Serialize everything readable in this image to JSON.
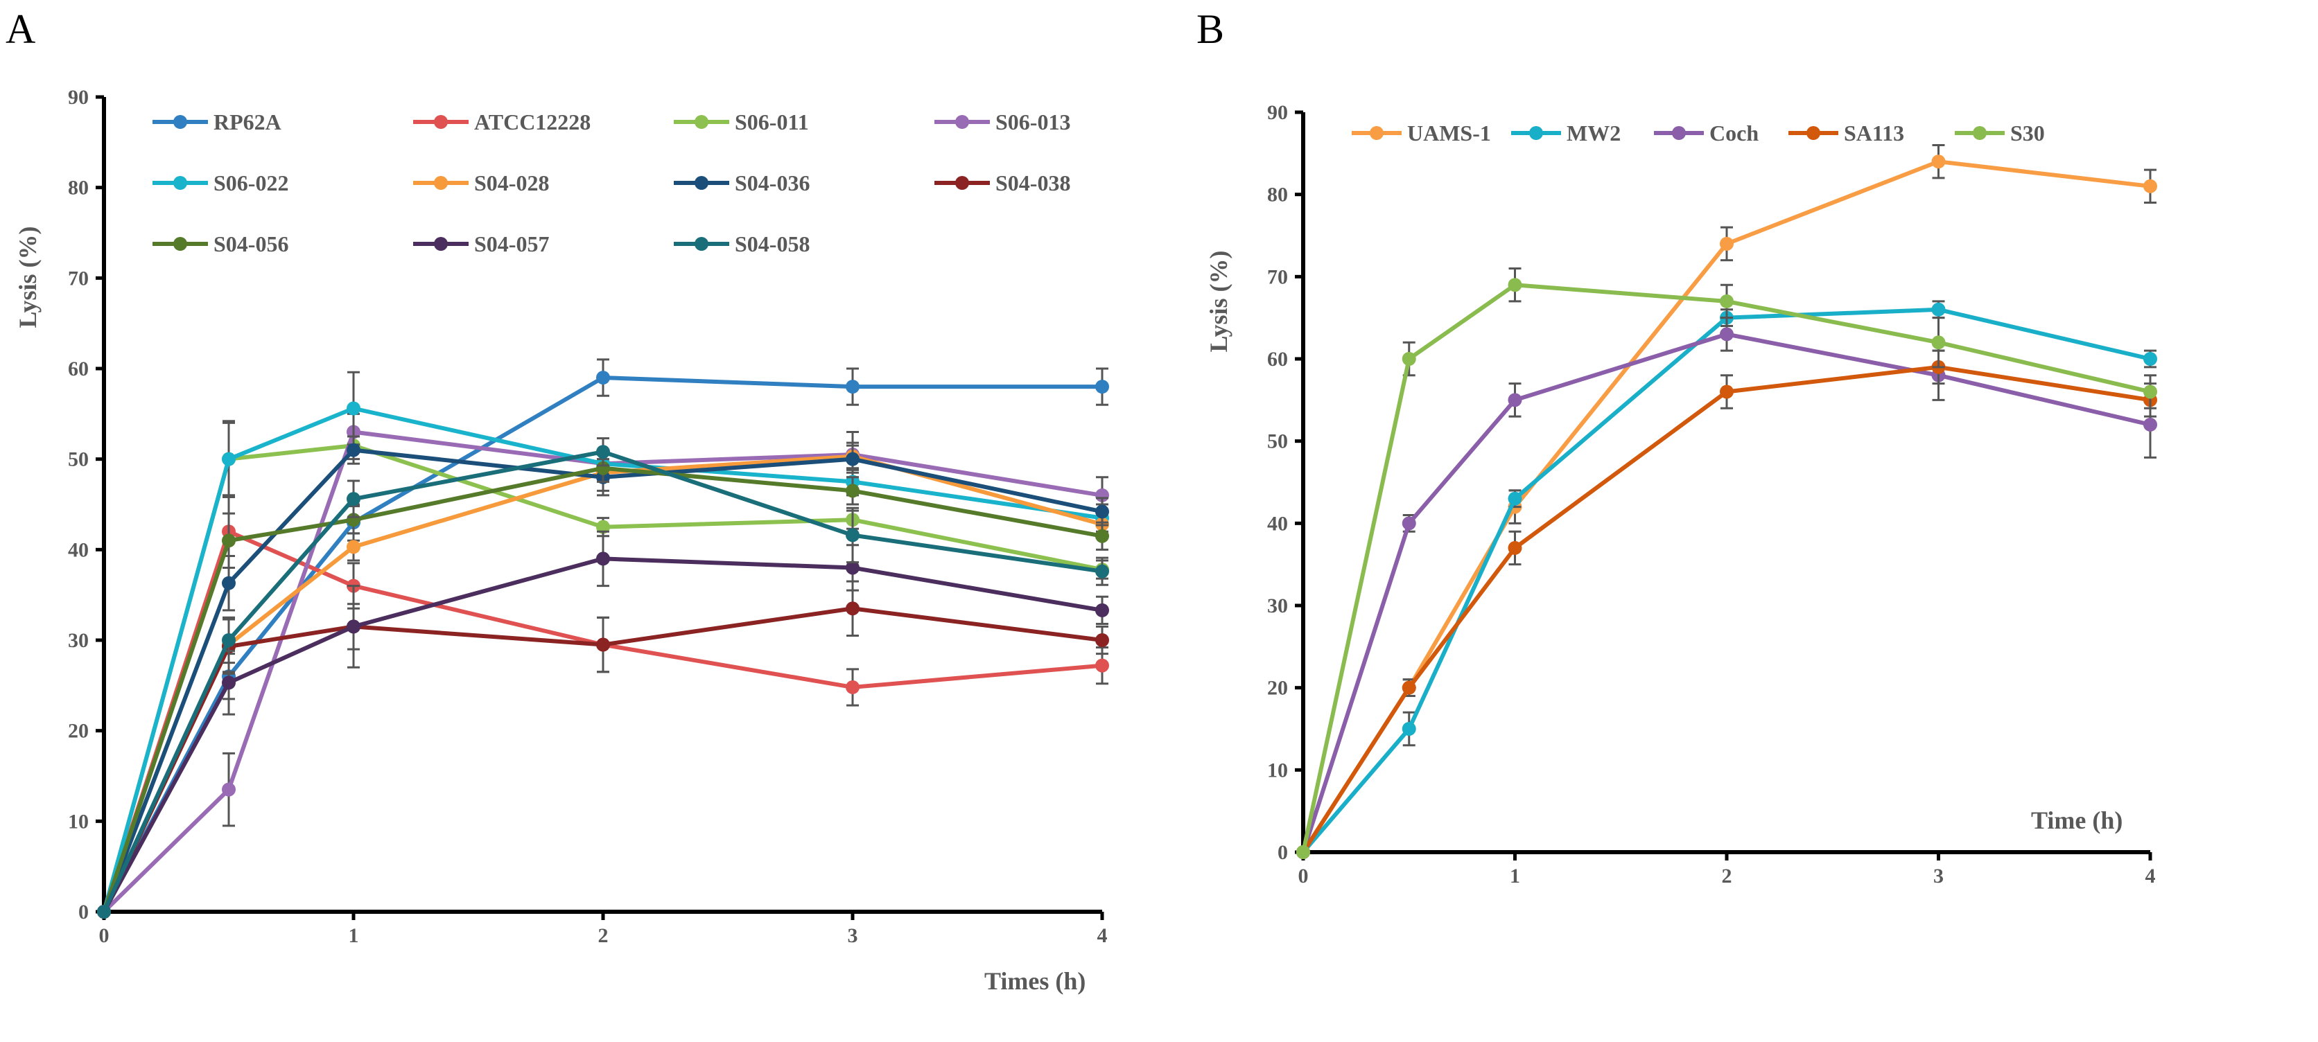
{
  "chart_data": [
    {
      "panel_label": "A",
      "type": "line",
      "xlabel": "Times (h)",
      "ylabel": "Lysis (%)",
      "x": [
        0,
        0.5,
        1,
        2,
        3,
        4
      ],
      "xticks": [
        "0",
        "1",
        "2",
        "3",
        "4"
      ],
      "xtick_values": [
        0,
        1,
        2,
        3,
        4
      ],
      "yticks": [
        "0",
        "10",
        "20",
        "30",
        "40",
        "50",
        "60",
        "70",
        "80",
        "90"
      ],
      "xlim": [
        0,
        4
      ],
      "ylim": [
        0,
        90
      ],
      "grid": false,
      "legend_placement": "top",
      "series": [
        {
          "name": "RP62A",
          "color": "#2f7fc1",
          "values": [
            0,
            26,
            43,
            59,
            58,
            58
          ],
          "errors": [
            0,
            2.5,
            2,
            2,
            2,
            2
          ]
        },
        {
          "name": "ATCC12228",
          "color": "#e05252",
          "values": [
            0,
            42,
            36,
            29.5,
            24.8,
            27.2
          ],
          "errors": [
            0,
            4,
            2.5,
            3,
            2,
            2
          ]
        },
        {
          "name": "S06-011",
          "color": "#8dc14f",
          "values": [
            0,
            50,
            51.5,
            42.5,
            43.3,
            37.8
          ],
          "errors": [
            0,
            4,
            1.5,
            1,
            1,
            1
          ]
        },
        {
          "name": "S06-013",
          "color": "#9a6bb5",
          "values": [
            0,
            13.5,
            53,
            49.5,
            50.5,
            46
          ],
          "errors": [
            0,
            4,
            2,
            1.5,
            2.5,
            2
          ]
        },
        {
          "name": "S06-022",
          "color": "#1ab3cc",
          "values": [
            0,
            50,
            55.6,
            49.5,
            47.5,
            43.5
          ],
          "errors": [
            0,
            4.2,
            4,
            1.5,
            1.5,
            1.5
          ]
        },
        {
          "name": "S04-028",
          "color": "#f79a3b",
          "values": [
            0,
            29.5,
            40.3,
            48.5,
            50.3,
            42.8
          ],
          "errors": [
            0,
            3,
            1.5,
            2,
            1.5,
            1.5
          ]
        },
        {
          "name": "S04-036",
          "color": "#1b4f7a",
          "values": [
            0,
            36.3,
            51,
            48,
            50,
            44.2
          ],
          "errors": [
            0,
            3,
            1.5,
            2,
            1.5,
            1.5
          ]
        },
        {
          "name": "S04-038",
          "color": "#8b2323",
          "values": [
            0,
            29.3,
            31.5,
            29.5,
            33.5,
            30
          ],
          "errors": [
            0,
            3,
            2.5,
            3,
            3,
            1.5
          ]
        },
        {
          "name": "S04-056",
          "color": "#557a2a",
          "values": [
            0,
            41,
            43.3,
            49,
            46.5,
            41.5
          ],
          "errors": [
            0,
            3,
            1.5,
            1.5,
            1.5,
            1.5
          ]
        },
        {
          "name": "S04-057",
          "color": "#4b2e5e",
          "values": [
            0,
            25.3,
            31.5,
            39,
            38,
            33.3
          ],
          "errors": [
            0,
            3.5,
            4.5,
            3,
            2.5,
            1.5
          ]
        },
        {
          "name": "S04-058",
          "color": "#1a6e7a",
          "values": [
            0,
            30,
            45.6,
            50.8,
            41.6,
            37.6
          ],
          "errors": [
            0,
            2.5,
            2,
            1.5,
            3,
            1.5
          ]
        }
      ]
    },
    {
      "panel_label": "B",
      "type": "line",
      "xlabel": "Time (h)",
      "ylabel": "Lysis (%)",
      "x": [
        0,
        0.5,
        1,
        2,
        3,
        4
      ],
      "xticks": [
        "0",
        "1",
        "2",
        "3",
        "4"
      ],
      "xtick_values": [
        0,
        1,
        2,
        3,
        4
      ],
      "yticks": [
        "0",
        "10",
        "20",
        "30",
        "40",
        "50",
        "60",
        "70",
        "80",
        "90"
      ],
      "xlim": [
        0,
        4
      ],
      "ylim": [
        0,
        90
      ],
      "grid": false,
      "legend_placement": "top",
      "series": [
        {
          "name": "UAMS-1",
          "color": "#f99d45",
          "values": [
            0,
            20,
            42,
            74,
            84,
            81
          ],
          "errors": [
            0,
            1,
            2,
            2,
            2,
            2
          ]
        },
        {
          "name": "MW2",
          "color": "#1aafc8",
          "values": [
            0,
            15,
            43,
            65,
            66,
            60
          ],
          "errors": [
            0,
            2,
            1,
            1,
            1,
            1
          ]
        },
        {
          "name": "Coch",
          "color": "#8a5ea8",
          "values": [
            0,
            40,
            55,
            63,
            58,
            52
          ],
          "errors": [
            0,
            1,
            2,
            2,
            3,
            4
          ]
        },
        {
          "name": "SA113",
          "color": "#d2580c",
          "values": [
            0,
            20,
            37,
            56,
            59,
            55
          ],
          "errors": [
            0,
            1,
            2,
            2,
            2,
            2
          ]
        },
        {
          "name": "S30",
          "color": "#8abb4e",
          "values": [
            0,
            60,
            69,
            67,
            62,
            56
          ],
          "errors": [
            0,
            2,
            2,
            2,
            3,
            2
          ]
        }
      ]
    }
  ]
}
